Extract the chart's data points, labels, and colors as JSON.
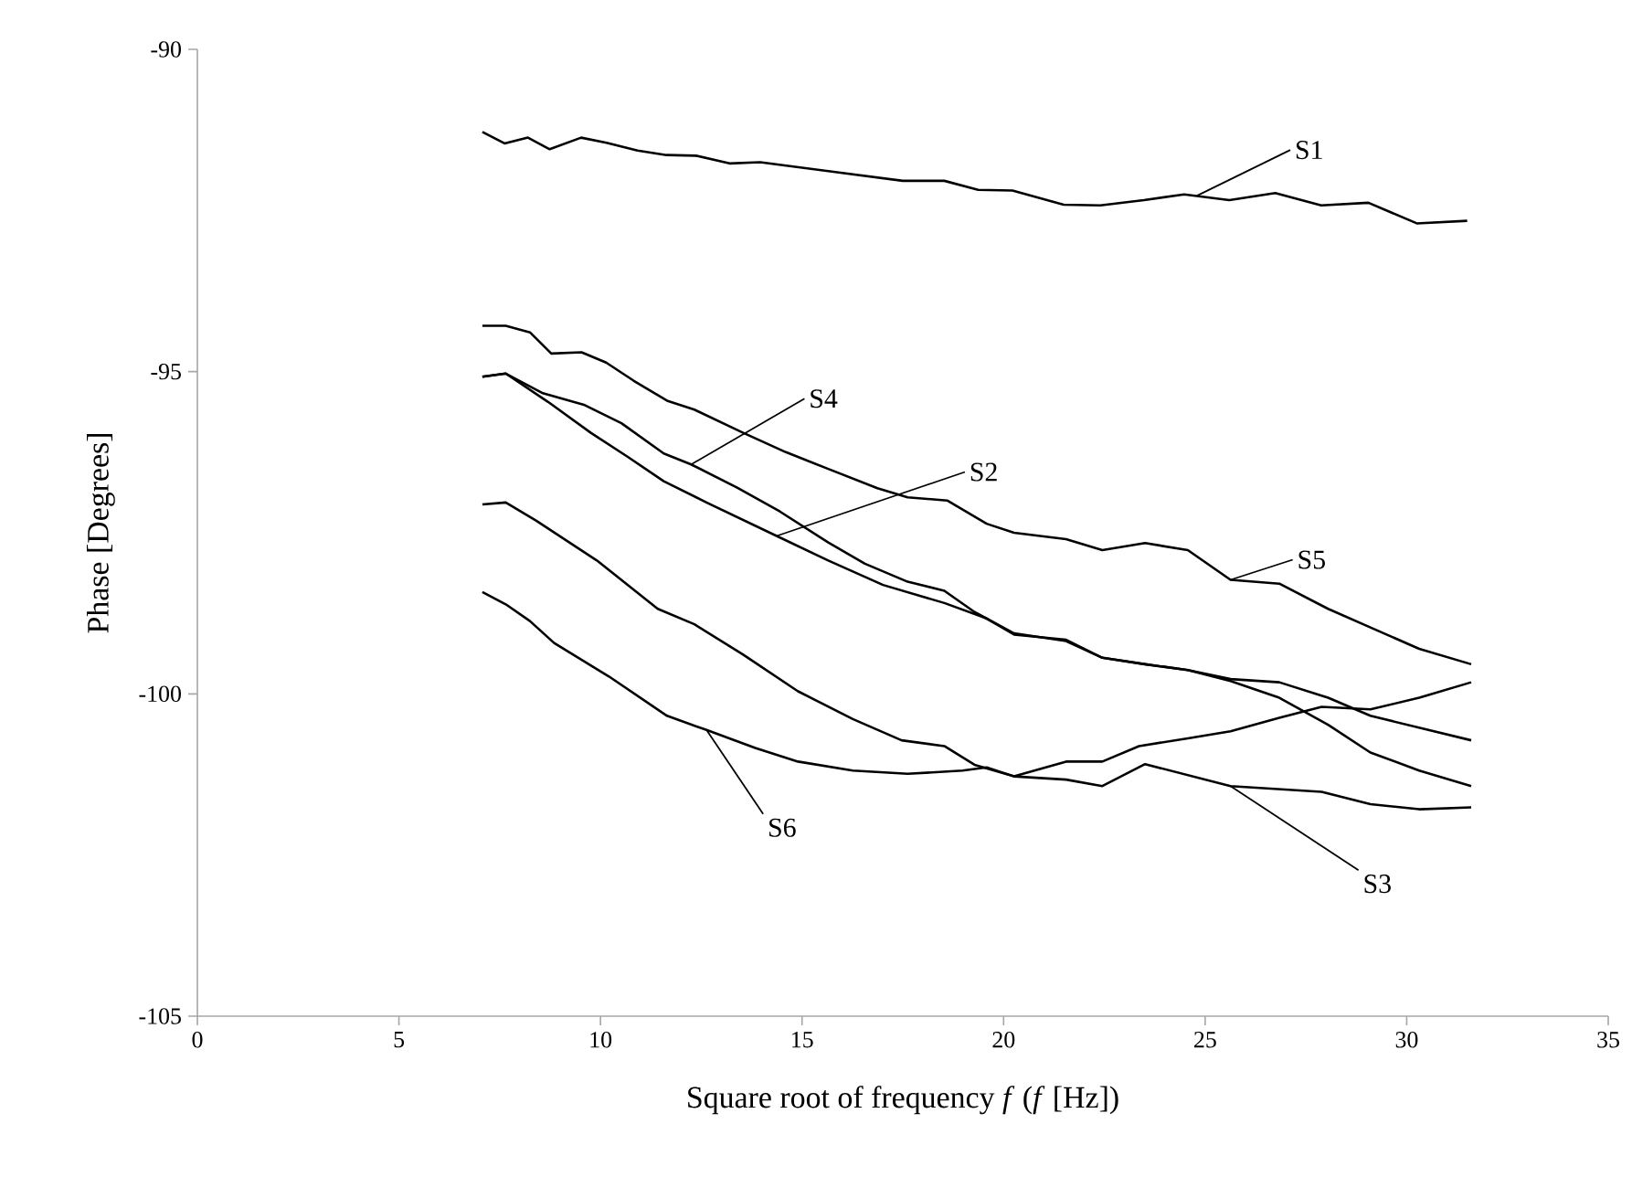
{
  "chart_data": {
    "type": "line",
    "xlabel": "Square root of frequency *f* (*f* [Hz])",
    "ylabel": "Phase [Degrees]",
    "xlim": [
      0,
      35
    ],
    "xticks": [
      0,
      5,
      10,
      15,
      20,
      25,
      30,
      35
    ],
    "ylim": [
      -105,
      -90
    ],
    "yticks": [
      -105,
      -100,
      -95,
      -90
    ],
    "grid": false,
    "series": [
      {
        "color": "#000000",
        "x": [
          7.07,
          7.62,
          8.2,
          8.74,
          9.52,
          10.15,
          10.92,
          11.64,
          12.37,
          13.2,
          13.96,
          15.78,
          17.5,
          18.53,
          19.37,
          20.22,
          21.49,
          22.4,
          23.48,
          24.48,
          25.6,
          26.74,
          27.88,
          29.05,
          30.25,
          31.5
        ],
        "values": [
          -91.28,
          -91.46,
          -91.37,
          -91.55,
          -91.37,
          -91.45,
          -91.57,
          -91.64,
          -91.65,
          -91.77,
          -91.75,
          -91.9,
          -92.04,
          -92.04,
          -92.18,
          -92.19,
          -92.41,
          -92.42,
          -92.34,
          -92.25,
          -92.34,
          -92.23,
          -92.42,
          -92.38,
          -92.7,
          -92.66
        ]
      },
      {
        "color": "#000000",
        "x": [
          7.07,
          7.65,
          8.7,
          9.76,
          10.67,
          11.57,
          12.63,
          14.37,
          15.65,
          17.01,
          18.53,
          19.58,
          20.26,
          21.55,
          22.45,
          23.51,
          24.57,
          25.63,
          26.84,
          28.05,
          29.1,
          31.6
        ],
        "values": [
          -95.08,
          -95.03,
          -95.47,
          -95.95,
          -96.32,
          -96.7,
          -97.03,
          -97.55,
          -97.93,
          -98.31,
          -98.59,
          -98.83,
          -99.08,
          -99.16,
          -99.44,
          -99.54,
          -99.63,
          -99.77,
          -99.82,
          -100.06,
          -100.34,
          -100.72
        ]
      },
      {
        "color": "#000000",
        "x": [
          7.07,
          7.65,
          8.4,
          9.91,
          11.42,
          12.33,
          13.54,
          14.9,
          16.26,
          17.47,
          18.53,
          19.28,
          20.26,
          21.55,
          22.45,
          23.51,
          25.63,
          27.89,
          29.1,
          30.31,
          31.6
        ],
        "values": [
          -97.06,
          -97.03,
          -97.31,
          -97.93,
          -98.68,
          -98.92,
          -99.39,
          -99.96,
          -100.39,
          -100.72,
          -100.81,
          -101.1,
          -101.28,
          -101.33,
          -101.43,
          -101.09,
          -101.43,
          -101.52,
          -101.71,
          -101.79,
          -101.76
        ]
      },
      {
        "color": "#000000",
        "x": [
          7.07,
          7.65,
          8.55,
          9.61,
          10.52,
          11.57,
          12.25,
          13.39,
          14.45,
          15.65,
          16.56,
          17.62,
          18.53,
          19.28,
          20.26,
          21.55,
          22.45,
          23.51,
          24.57,
          25.63,
          26.84,
          28.05,
          29.1,
          30.31,
          31.6
        ],
        "values": [
          -95.08,
          -95.03,
          -95.33,
          -95.52,
          -95.8,
          -96.27,
          -96.44,
          -96.8,
          -97.17,
          -97.65,
          -97.98,
          -98.26,
          -98.4,
          -98.73,
          -99.06,
          -99.18,
          -99.44,
          -99.54,
          -99.63,
          -99.8,
          -100.06,
          -100.48,
          -100.91,
          -101.19,
          -101.43
        ]
      },
      {
        "color": "#000000",
        "x": [
          7.07,
          7.65,
          8.25,
          8.78,
          9.53,
          10.14,
          10.82,
          11.65,
          12.33,
          13.54,
          14.6,
          15.65,
          16.87,
          17.62,
          18.6,
          19.58,
          20.26,
          21.55,
          22.45,
          23.51,
          24.57,
          25.63,
          26.84,
          28.05,
          29.1,
          30.31,
          31.6
        ],
        "values": [
          -94.29,
          -94.29,
          -94.39,
          -94.72,
          -94.7,
          -94.86,
          -95.14,
          -95.45,
          -95.59,
          -95.95,
          -96.25,
          -96.51,
          -96.81,
          -96.95,
          -97.0,
          -97.36,
          -97.5,
          -97.6,
          -97.77,
          -97.66,
          -97.77,
          -98.23,
          -98.29,
          -98.68,
          -98.97,
          -99.3,
          -99.54
        ]
      },
      {
        "color": "#000000",
        "x": [
          7.07,
          7.65,
          8.25,
          8.85,
          10.21,
          11.65,
          12.63,
          13.84,
          14.9,
          16.26,
          17.62,
          18.98,
          19.58,
          20.26,
          21.55,
          22.45,
          23.36,
          24.57,
          25.63,
          26.84,
          27.89,
          29.1,
          30.31,
          31.6
        ],
        "values": [
          -98.42,
          -98.61,
          -98.87,
          -99.21,
          -99.73,
          -100.34,
          -100.56,
          -100.84,
          -101.05,
          -101.19,
          -101.24,
          -101.19,
          -101.14,
          -101.28,
          -101.05,
          -101.05,
          -100.81,
          -100.69,
          -100.58,
          -100.37,
          -100.2,
          -100.24,
          -100.06,
          -99.82
        ]
      }
    ],
    "annotations": [
      {
        "text": "S1",
        "x": 24.8,
        "y": -92.27
      },
      {
        "text": "S4",
        "x": 12.25,
        "y": -96.44
      },
      {
        "text": "S2",
        "x": 14.37,
        "y": -97.55
      },
      {
        "text": "S5",
        "x": 25.63,
        "y": -98.23
      },
      {
        "text": "S6",
        "x": 12.63,
        "y": -100.56
      },
      {
        "text": "S3",
        "x": 25.63,
        "y": -101.43
      }
    ]
  }
}
